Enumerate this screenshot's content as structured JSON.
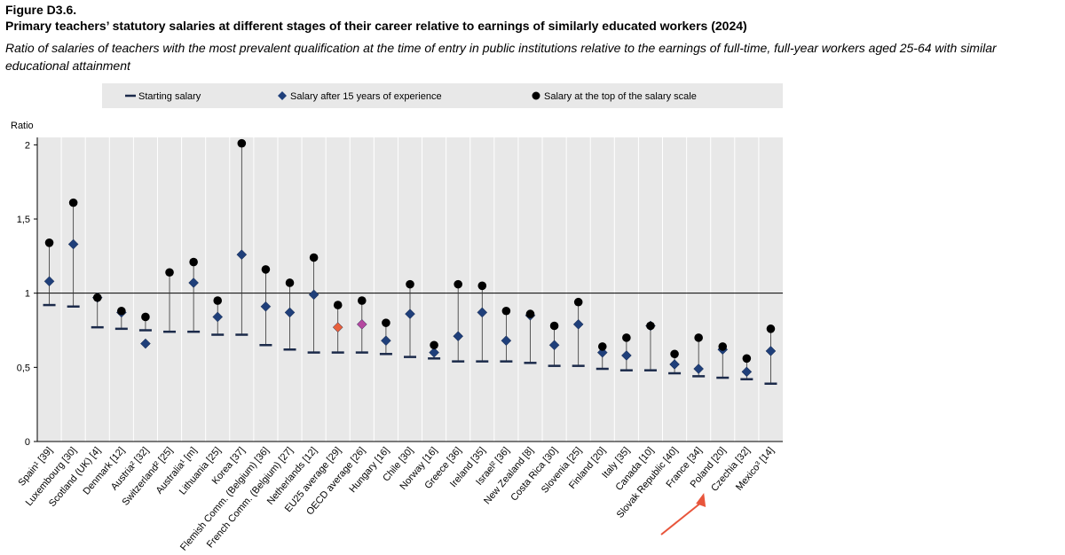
{
  "figure": {
    "label": "Figure D3.6.",
    "title": "Primary teachers’ statutory salaries at different stages of their career relative to earnings of similarly educated workers (2024)",
    "subtitle": "Ratio of salaries of teachers with the most prevalent qualification at the time of entry in public institutions relative to the earnings of full-time, full-year workers aged 25-64 with similar educational attainment"
  },
  "colors": {
    "plot_background": "#e8e8e8",
    "legend_background": "#e8e8e8",
    "start_marker": "#1b2a4a",
    "mid_marker": "#1f3f7a",
    "top_marker": "#000000",
    "eu25_highlight": "#e8603c",
    "oecd_highlight": "#b548a0",
    "annotation_arrow": "#e8553b",
    "grid": "#ffffff"
  },
  "chart_data": {
    "type": "scatter",
    "ylabel": "Ratio",
    "ylim": [
      0,
      2.05
    ],
    "yticks": [
      0,
      0.5,
      1,
      1.5,
      2
    ],
    "ytick_labels": [
      "0",
      "0,5",
      "1",
      "1,5",
      "2"
    ],
    "reference_line": 1,
    "legend": {
      "placement": "top",
      "entries": [
        "Starting salary",
        "Salary after 15 years of experience",
        "Salary at the top of the salary scale"
      ]
    },
    "categories": [
      "Spain¹ [39]",
      "Luxembourg [30]",
      "Scotland (UK) [4]",
      "Denmark [12]",
      "Austria² [32]",
      "Switzerland² [25]",
      "Australia¹ [m]",
      "Lithuania [25]",
      "Korea [37]",
      "Flemish Comm. (Belgium) [36]",
      "French Comm. (Belgium) [27]",
      "Netherlands [12]",
      "EU25 average [29]",
      "OECD average [26]",
      "Hungary [16]",
      "Chile [30]",
      "Norway [16]",
      "Greece [36]",
      "Ireland [35]",
      "Israel² [36]",
      "New Zealand [8]",
      "Costa Rica [30]",
      "Slovenia [25]",
      "Finland [20]",
      "Italy [35]",
      "Canada [10]",
      "Slovak Republic [40]",
      "France [34]",
      "Poland [20]",
      "Czechia [32]",
      "Mexico³ [14]"
    ],
    "series": [
      {
        "name": "Starting salary",
        "values": [
          0.92,
          0.91,
          0.77,
          0.76,
          0.75,
          0.74,
          0.74,
          0.72,
          0.72,
          0.65,
          0.62,
          0.6,
          0.6,
          0.6,
          0.59,
          0.57,
          0.56,
          0.54,
          0.54,
          0.54,
          0.53,
          0.51,
          0.51,
          0.49,
          0.48,
          0.48,
          0.46,
          0.44,
          0.43,
          0.42,
          0.39
        ]
      },
      {
        "name": "Salary after 15 years of experience",
        "values": [
          1.08,
          1.33,
          0.97,
          0.87,
          0.66,
          null,
          1.07,
          0.84,
          1.26,
          0.91,
          0.87,
          0.99,
          0.77,
          0.79,
          0.68,
          0.86,
          0.6,
          0.71,
          0.87,
          0.68,
          0.85,
          0.65,
          0.79,
          0.6,
          0.58,
          0.78,
          0.52,
          0.49,
          0.62,
          0.47,
          0.61
        ]
      },
      {
        "name": "Salary at the top of the salary scale",
        "values": [
          1.34,
          1.61,
          0.97,
          0.88,
          0.84,
          1.14,
          1.21,
          0.95,
          2.01,
          1.16,
          1.07,
          1.24,
          0.92,
          0.95,
          0.8,
          1.06,
          0.65,
          1.06,
          1.05,
          0.88,
          0.86,
          0.78,
          0.94,
          0.64,
          0.7,
          0.78,
          0.59,
          0.7,
          0.64,
          0.56,
          0.76
        ]
      }
    ]
  }
}
